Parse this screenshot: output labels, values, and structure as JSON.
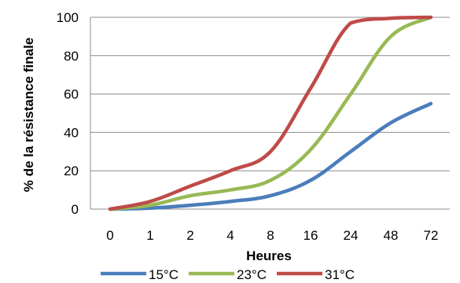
{
  "chart_data": {
    "type": "line",
    "categories": [
      "0",
      "1",
      "2",
      "4",
      "8",
      "16",
      "24",
      "48",
      "72"
    ],
    "ylabel": "% de la résistance finale",
    "xlabel": "Heures",
    "ylim": [
      0,
      100
    ],
    "yticks": [
      0,
      20,
      40,
      60,
      80,
      100
    ],
    "grid": "horizontal",
    "legend_position": "bottom",
    "series": [
      {
        "name": "15°C",
        "color": "#4A7EBB",
        "values": [
          0,
          0.5,
          2,
          4,
          7,
          15,
          30,
          45,
          55
        ]
      },
      {
        "name": "23°C",
        "color": "#98B954",
        "values": [
          0,
          2,
          7,
          10,
          15,
          31,
          60,
          90,
          100
        ]
      },
      {
        "name": "31°C",
        "color": "#BE4B48",
        "values": [
          0,
          4,
          12,
          20,
          30,
          63,
          97,
          99.5,
          100
        ]
      }
    ]
  }
}
